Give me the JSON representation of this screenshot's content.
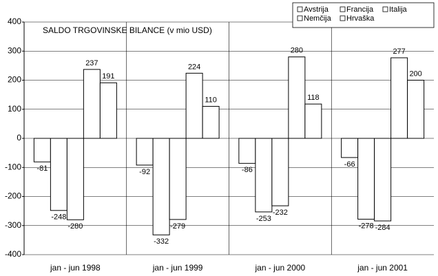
{
  "chart_data": {
    "type": "bar",
    "title": "SALDO TRGOVINSKE BILANCE (v mio USD)",
    "categories": [
      "jan - jun 1998",
      "jan - jun 1999",
      "jan - jun 2000",
      "jan - jun 2001"
    ],
    "series": [
      {
        "name": "Avstrija",
        "color": "#ffffff",
        "values": [
          -81,
          -92,
          -86,
          -66
        ]
      },
      {
        "name": "Francija",
        "color": "#ffffff",
        "values": [
          -248,
          -332,
          -253,
          -278
        ]
      },
      {
        "name": "Italija",
        "color": "#ffffff",
        "values": [
          -280,
          -279,
          -232,
          -284
        ]
      },
      {
        "name": "Nemčija",
        "color": "#ffffff",
        "values": [
          237,
          224,
          280,
          277
        ]
      },
      {
        "name": "Hrvaška",
        "color": "#ffffff",
        "values": [
          191,
          110,
          118,
          200
        ]
      }
    ],
    "ylim": [
      -400,
      400
    ],
    "yticks": [
      -400,
      -300,
      -200,
      -100,
      0,
      100,
      200,
      300,
      400
    ],
    "grid": true
  }
}
